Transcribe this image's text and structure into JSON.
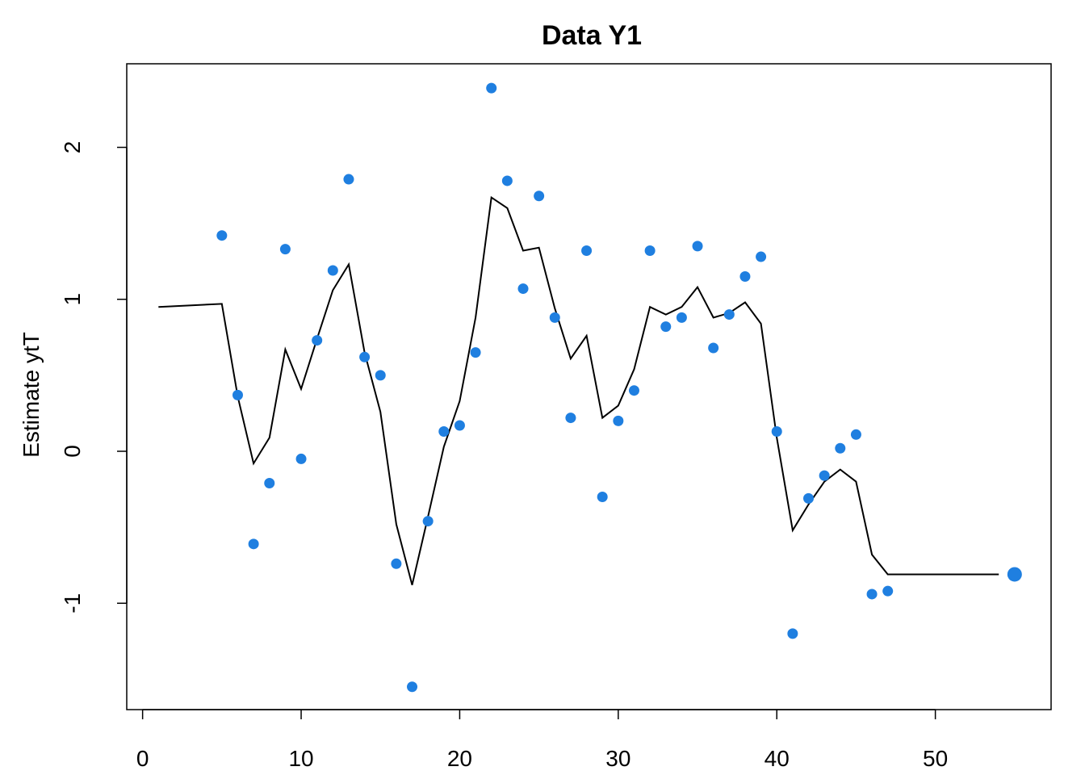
{
  "chart_data": {
    "type": "line",
    "title": "Data Y1",
    "xlabel": "",
    "ylabel": "Estimate ytT",
    "xlim": [
      -1,
      57.3
    ],
    "ylim": [
      -1.7,
      2.55
    ],
    "x_ticks": [
      0,
      10,
      20,
      30,
      40,
      50
    ],
    "x_tick_labels": [
      "0",
      "10",
      "20",
      "30",
      "40",
      "50"
    ],
    "y_ticks": [
      -1,
      0,
      1,
      2
    ],
    "y_tick_labels": [
      "-1",
      "0",
      "1",
      "2"
    ],
    "grid": false,
    "colors": {
      "points": "#1f7fe0",
      "line": "#000000"
    },
    "series": [
      {
        "type": "line",
        "x": [
          1,
          5,
          6,
          7,
          8,
          9,
          10,
          11,
          12,
          13,
          14,
          15,
          16,
          17,
          18,
          19,
          20,
          21,
          22,
          23,
          24,
          25,
          26,
          27,
          28,
          29,
          30,
          31,
          32,
          33,
          34,
          35,
          36,
          37,
          38,
          39,
          40,
          41,
          42,
          43,
          44,
          45,
          46,
          47,
          54
        ],
        "y": [
          0.95,
          0.97,
          0.36,
          -0.08,
          0.09,
          0.67,
          0.41,
          0.74,
          1.06,
          1.23,
          0.65,
          0.26,
          -0.48,
          -0.88,
          -0.43,
          0.03,
          0.33,
          0.88,
          1.67,
          1.6,
          1.32,
          1.34,
          0.94,
          0.61,
          0.76,
          0.22,
          0.3,
          0.54,
          0.95,
          0.9,
          0.95,
          1.08,
          0.88,
          0.91,
          0.98,
          0.84,
          0.09,
          -0.52,
          -0.35,
          -0.2,
          -0.12,
          -0.2,
          -0.68,
          -0.81,
          -0.81
        ]
      },
      {
        "type": "scatter",
        "x": [
          5,
          6,
          7,
          8,
          9,
          10,
          11,
          12,
          13,
          14,
          15,
          16,
          17,
          18,
          19,
          20,
          21,
          22,
          23,
          24,
          25,
          26,
          27,
          28,
          29,
          30,
          31,
          32,
          33,
          34,
          35,
          36,
          37,
          38,
          39,
          40,
          41,
          42,
          43,
          44,
          45,
          46,
          47
        ],
        "y": [
          1.42,
          0.37,
          -0.61,
          -0.21,
          1.33,
          -0.05,
          0.73,
          1.19,
          1.79,
          0.62,
          0.5,
          -0.74,
          -1.55,
          -0.46,
          0.13,
          0.17,
          0.65,
          2.39,
          1.78,
          1.07,
          1.68,
          0.88,
          0.22,
          1.32,
          -0.3,
          0.2,
          0.4,
          1.32,
          0.82,
          0.88,
          1.35,
          0.68,
          0.9,
          1.15,
          1.28,
          0.13,
          -1.2,
          -0.31,
          -0.16,
          0.02,
          0.11,
          -0.94,
          -0.92
        ]
      },
      {
        "type": "point-large",
        "x": [
          55
        ],
        "y": [
          -0.81
        ]
      }
    ]
  }
}
